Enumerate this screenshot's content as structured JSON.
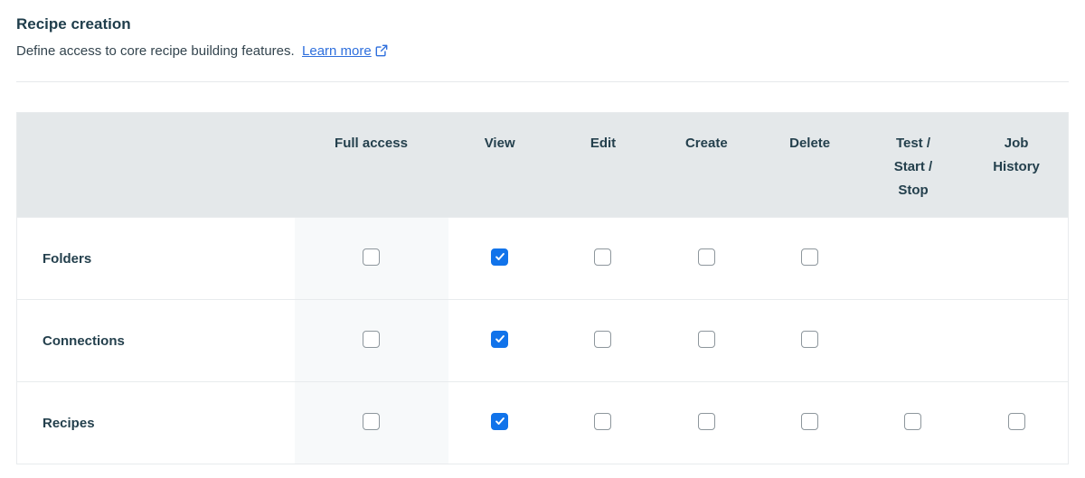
{
  "header": {
    "title": "Recipe creation",
    "subtitle": "Define access to core recipe building features.",
    "learn_more_label": "Learn more"
  },
  "icons": {
    "external_link": "external-link-icon",
    "checkmark": "check-icon"
  },
  "colors": {
    "accent_checkbox_blue": "#1173ea",
    "link_blue": "#2e6fdd",
    "header_row_bg": "#e4e8ea",
    "full_access_column_bg": "#f7f9fa",
    "text_dark_teal": "#24404d",
    "border_gray": "#e8ebed",
    "checkbox_border_gray": "#8d969c"
  },
  "table": {
    "columns": [
      "Full access",
      "View",
      "Edit",
      "Create",
      "Delete",
      "Test / Start / Stop",
      "Job History"
    ],
    "rows": [
      {
        "label": "Folders",
        "cells": [
          false,
          true,
          false,
          false,
          false,
          null,
          null
        ]
      },
      {
        "label": "Connections",
        "cells": [
          false,
          true,
          false,
          false,
          false,
          null,
          null
        ]
      },
      {
        "label": "Recipes",
        "cells": [
          false,
          true,
          false,
          false,
          false,
          false,
          false
        ]
      }
    ]
  }
}
